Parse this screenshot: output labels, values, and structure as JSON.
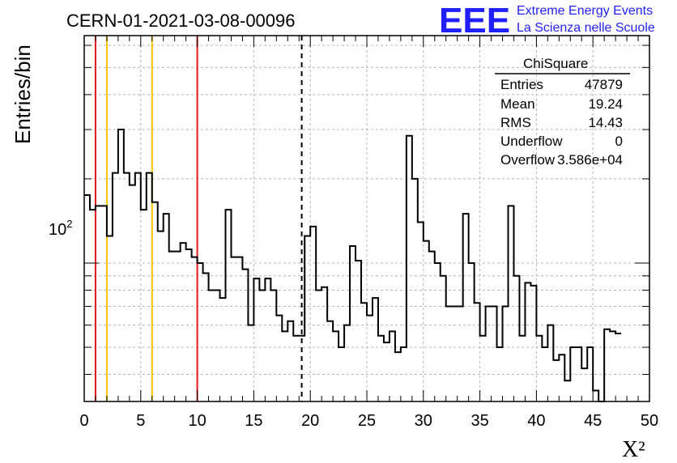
{
  "header": {
    "title": "CERN-01-2021-03-08-00096",
    "logo": "EEE",
    "logo_line1": "Extreme Energy Events",
    "logo_line2": "La Scienza nelle Scuole"
  },
  "stats": {
    "title": "ChiSquare",
    "rows": [
      {
        "label": "Entries",
        "value": "47879"
      },
      {
        "label": "Mean",
        "value": "19.24"
      },
      {
        "label": "RMS",
        "value": "14.43"
      },
      {
        "label": "Underflow",
        "value": "0"
      },
      {
        "label": "Overflow",
        "value": "3.586e+04"
      }
    ]
  },
  "chart_data": {
    "type": "histogram",
    "xlabel": "X²",
    "ylabel": "Entries/bin",
    "xlim": [
      0,
      50
    ],
    "ylim": [
      32,
      650
    ],
    "y_scale": "log",
    "grid": true,
    "x_ticks": [
      0,
      5,
      10,
      15,
      20,
      25,
      30,
      35,
      40,
      45,
      50
    ],
    "x_tick_labels": [
      "0",
      "5",
      "10",
      "15",
      "20",
      "25",
      "30",
      "35",
      "40",
      "45",
      "50"
    ],
    "y_tick_label": {
      "base": "10",
      "exp": "2",
      "value": 100
    },
    "bin_width": 0.5,
    "values": [
      175,
      155,
      160,
      160,
      125,
      210,
      300,
      210,
      190,
      210,
      155,
      210,
      165,
      130,
      150,
      110,
      110,
      118,
      112,
      105,
      100,
      92,
      80,
      80,
      75,
      155,
      105,
      105,
      95,
      60,
      88,
      80,
      88,
      80,
      65,
      57,
      62,
      55,
      55,
      125,
      135,
      80,
      82,
      62,
      57,
      50,
      60,
      115,
      102,
      72,
      65,
      75,
      55,
      52,
      57,
      48,
      50,
      285,
      200,
      140,
      120,
      110,
      100,
      90,
      70,
      70,
      70,
      150,
      100,
      72,
      55,
      70,
      70,
      50,
      70,
      160,
      90,
      55,
      85,
      83,
      55,
      50,
      60,
      45,
      47,
      38,
      50,
      50,
      42,
      50,
      35,
      32,
      58,
      57,
      56
    ],
    "vertical_lines": [
      {
        "x": 1,
        "color": "#e8191c",
        "style": "solid"
      },
      {
        "x": 2,
        "color": "#f5c400",
        "style": "solid"
      },
      {
        "x": 6,
        "color": "#f5c400",
        "style": "solid"
      },
      {
        "x": 10,
        "color": "#e8191c",
        "style": "solid"
      },
      {
        "x": 19.24,
        "color": "#000000",
        "style": "dashed"
      }
    ],
    "line_color": "#000000"
  }
}
